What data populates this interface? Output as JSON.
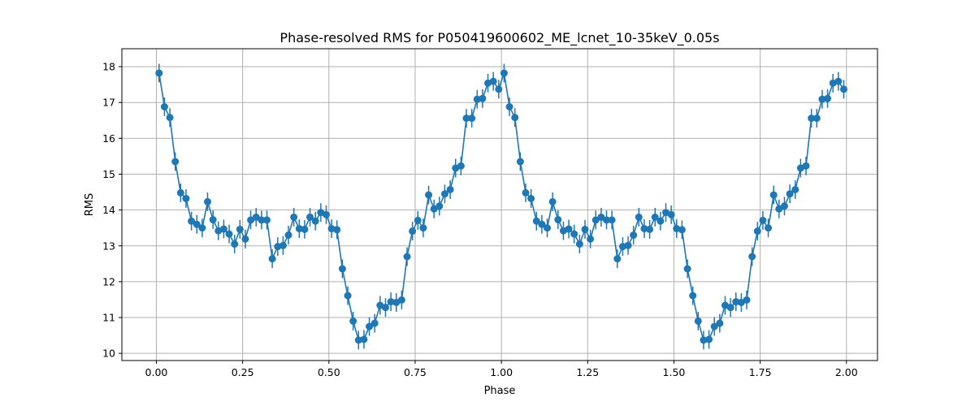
{
  "chart_data": {
    "type": "line",
    "title": "Phase-resolved RMS for P050419600602_ME_lcnet_10-35keV_0.05s",
    "xlabel": "Phase",
    "ylabel": "RMS",
    "xlim": [
      -0.1,
      2.09
    ],
    "ylim": [
      9.8,
      18.5
    ],
    "xticks": [
      0.0,
      0.25,
      0.5,
      0.75,
      1.0,
      1.25,
      1.5,
      1.75,
      2.0
    ],
    "xtick_labels": [
      "0.00",
      "0.25",
      "0.50",
      "0.75",
      "1.00",
      "1.25",
      "1.50",
      "1.75",
      "2.00"
    ],
    "yticks": [
      10,
      11,
      12,
      13,
      14,
      15,
      16,
      17,
      18
    ],
    "ytick_labels": [
      "10",
      "11",
      "12",
      "13",
      "14",
      "15",
      "16",
      "17",
      "18"
    ],
    "grid": true,
    "color": "#1f77b4",
    "series": [
      {
        "x": [
          0.0078,
          0.0234,
          0.0391,
          0.0547,
          0.0703,
          0.0859,
          0.1016,
          0.1172,
          0.1328,
          0.1484,
          0.1641,
          0.1797,
          0.1953,
          0.2109,
          0.2266,
          0.2422,
          0.2578,
          0.2734,
          0.2891,
          0.3047,
          0.3203,
          0.3359,
          0.3516,
          0.3672,
          0.3828,
          0.3984,
          0.4141,
          0.4297,
          0.4453,
          0.4609,
          0.4766,
          0.4922,
          0.5078,
          0.5234,
          0.5391,
          0.5547,
          0.5703,
          0.5859,
          0.6016,
          0.6172,
          0.6328,
          0.6484,
          0.6641,
          0.6797,
          0.6953,
          0.7109,
          0.7266,
          0.7422,
          0.7578,
          0.7734,
          0.7891,
          0.8047,
          0.8203,
          0.8359,
          0.8516,
          0.8672,
          0.8828,
          0.8984,
          0.9141,
          0.9297,
          0.9453,
          0.9609,
          0.9766,
          0.9922,
          1.0078,
          1.0234,
          1.0391,
          1.0547,
          1.0703,
          1.0859,
          1.1016,
          1.1172,
          1.1328,
          1.1484,
          1.1641,
          1.1797,
          1.1953,
          1.2109,
          1.2266,
          1.2422,
          1.2578,
          1.2734,
          1.2891,
          1.3047,
          1.3203,
          1.3359,
          1.3516,
          1.3672,
          1.3828,
          1.3984,
          1.4141,
          1.4297,
          1.4453,
          1.4609,
          1.4766,
          1.4922,
          1.5078,
          1.5234,
          1.5391,
          1.5547,
          1.5703,
          1.5859,
          1.6016,
          1.6172,
          1.6328,
          1.6484,
          1.6641,
          1.6797,
          1.6953,
          1.7109,
          1.7266,
          1.7422,
          1.7578,
          1.7734,
          1.7891,
          1.8047,
          1.8203,
          1.8359,
          1.8516,
          1.8672,
          1.8828,
          1.8984,
          1.9141,
          1.9297,
          1.9453,
          1.9609,
          1.9766,
          1.9922
        ],
        "y": [
          17.82,
          16.88,
          16.58,
          15.35,
          14.48,
          14.32,
          13.69,
          13.6,
          13.5,
          14.23,
          13.73,
          13.42,
          13.47,
          13.33,
          13.05,
          13.46,
          13.19,
          13.72,
          13.8,
          13.72,
          13.72,
          12.64,
          12.98,
          13.01,
          13.3,
          13.8,
          13.48,
          13.46,
          13.8,
          13.69,
          13.93,
          13.87,
          13.48,
          13.45,
          12.36,
          11.61,
          10.9,
          10.37,
          10.39,
          10.75,
          10.84,
          11.34,
          11.28,
          11.44,
          11.42,
          11.49,
          12.7,
          13.41,
          13.71,
          13.5,
          14.42,
          14.03,
          14.11,
          14.45,
          14.57,
          15.17,
          15.23,
          16.56,
          16.56,
          17.09,
          17.11,
          17.54,
          17.59,
          17.37,
          17.82,
          16.88,
          16.58,
          15.35,
          14.48,
          14.32,
          13.69,
          13.6,
          13.5,
          14.23,
          13.73,
          13.42,
          13.47,
          13.33,
          13.05,
          13.46,
          13.19,
          13.72,
          13.8,
          13.72,
          13.72,
          12.64,
          12.98,
          13.01,
          13.3,
          13.8,
          13.48,
          13.46,
          13.8,
          13.69,
          13.93,
          13.87,
          13.48,
          13.45,
          12.36,
          11.61,
          10.9,
          10.37,
          10.39,
          10.75,
          10.84,
          11.34,
          11.28,
          11.44,
          11.42,
          11.49,
          12.7,
          13.41,
          13.71,
          13.5,
          14.42,
          14.03,
          14.11,
          14.45,
          14.57,
          15.17,
          15.23,
          16.56,
          16.56,
          17.09,
          17.11,
          17.54,
          17.59,
          17.37
        ],
        "yerr": 0.26
      }
    ]
  }
}
